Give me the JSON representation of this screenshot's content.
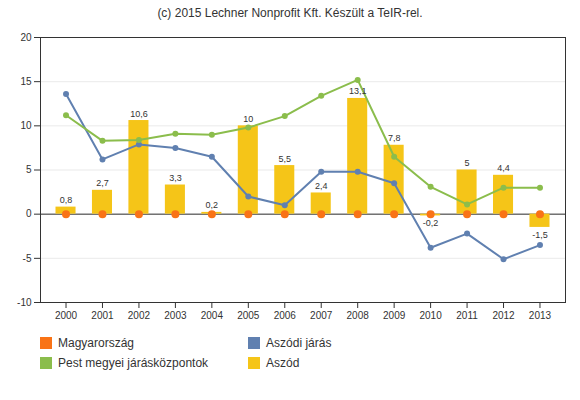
{
  "chart_data": {
    "type": "bar",
    "title": "(c) 2015 Lechner Nonprofit Kft. Készült a TeIR-rel.",
    "x": [
      2000,
      2001,
      2002,
      2003,
      2004,
      2005,
      2006,
      2007,
      2008,
      2009,
      2010,
      2011,
      2012,
      2013
    ],
    "xlim": [
      1999.3,
      2013.7
    ],
    "xticks": [
      2000,
      2001,
      2002,
      2003,
      2004,
      2005,
      2006,
      2007,
      2008,
      2009,
      2010,
      2011,
      2012,
      2013
    ],
    "ylim": [
      -10,
      20
    ],
    "yticks": [
      -10,
      -5,
      0,
      5,
      10,
      15,
      20
    ],
    "grid": true,
    "legend": "bottom",
    "series": [
      {
        "name": "Magyarország",
        "type": "scatter",
        "color": "#F97316",
        "marker": "o",
        "values": [
          0.0,
          0.0,
          0.0,
          0.0,
          0.0,
          0.0,
          0.0,
          0.0,
          0.0,
          0.0,
          0.0,
          0.0,
          0.0,
          0.0
        ]
      },
      {
        "name": "Aszódi járás",
        "type": "line",
        "color": "#6080B0",
        "marker": "o",
        "values": [
          13.6,
          6.2,
          7.9,
          7.5,
          6.5,
          2.0,
          1.0,
          4.8,
          4.8,
          3.5,
          -3.8,
          -2.2,
          -5.1,
          -3.5
        ]
      },
      {
        "name": "Pest megyei járásközpontok",
        "type": "line",
        "color": "#8BBD4C",
        "marker": "o",
        "values": [
          11.2,
          8.3,
          8.4,
          9.1,
          9.0,
          9.8,
          11.1,
          13.4,
          15.2,
          6.5,
          3.1,
          1.1,
          3.0,
          3.0
        ]
      },
      {
        "name": "Aszód",
        "type": "bar",
        "color": "#F5C518",
        "data_labels": true,
        "values": [
          0.8,
          2.7,
          10.6,
          3.3,
          0.2,
          10.0,
          5.5,
          2.4,
          13.1,
          7.8,
          -0.2,
          5.0,
          4.4,
          -1.5
        ],
        "value_labels": [
          "0,8",
          "2,7",
          "10,6",
          "3,3",
          "0,2",
          "10",
          "5,5",
          "2,4",
          "13,1",
          "7,8",
          "-0,2",
          "5",
          "4,4",
          "-1,5"
        ]
      }
    ]
  }
}
